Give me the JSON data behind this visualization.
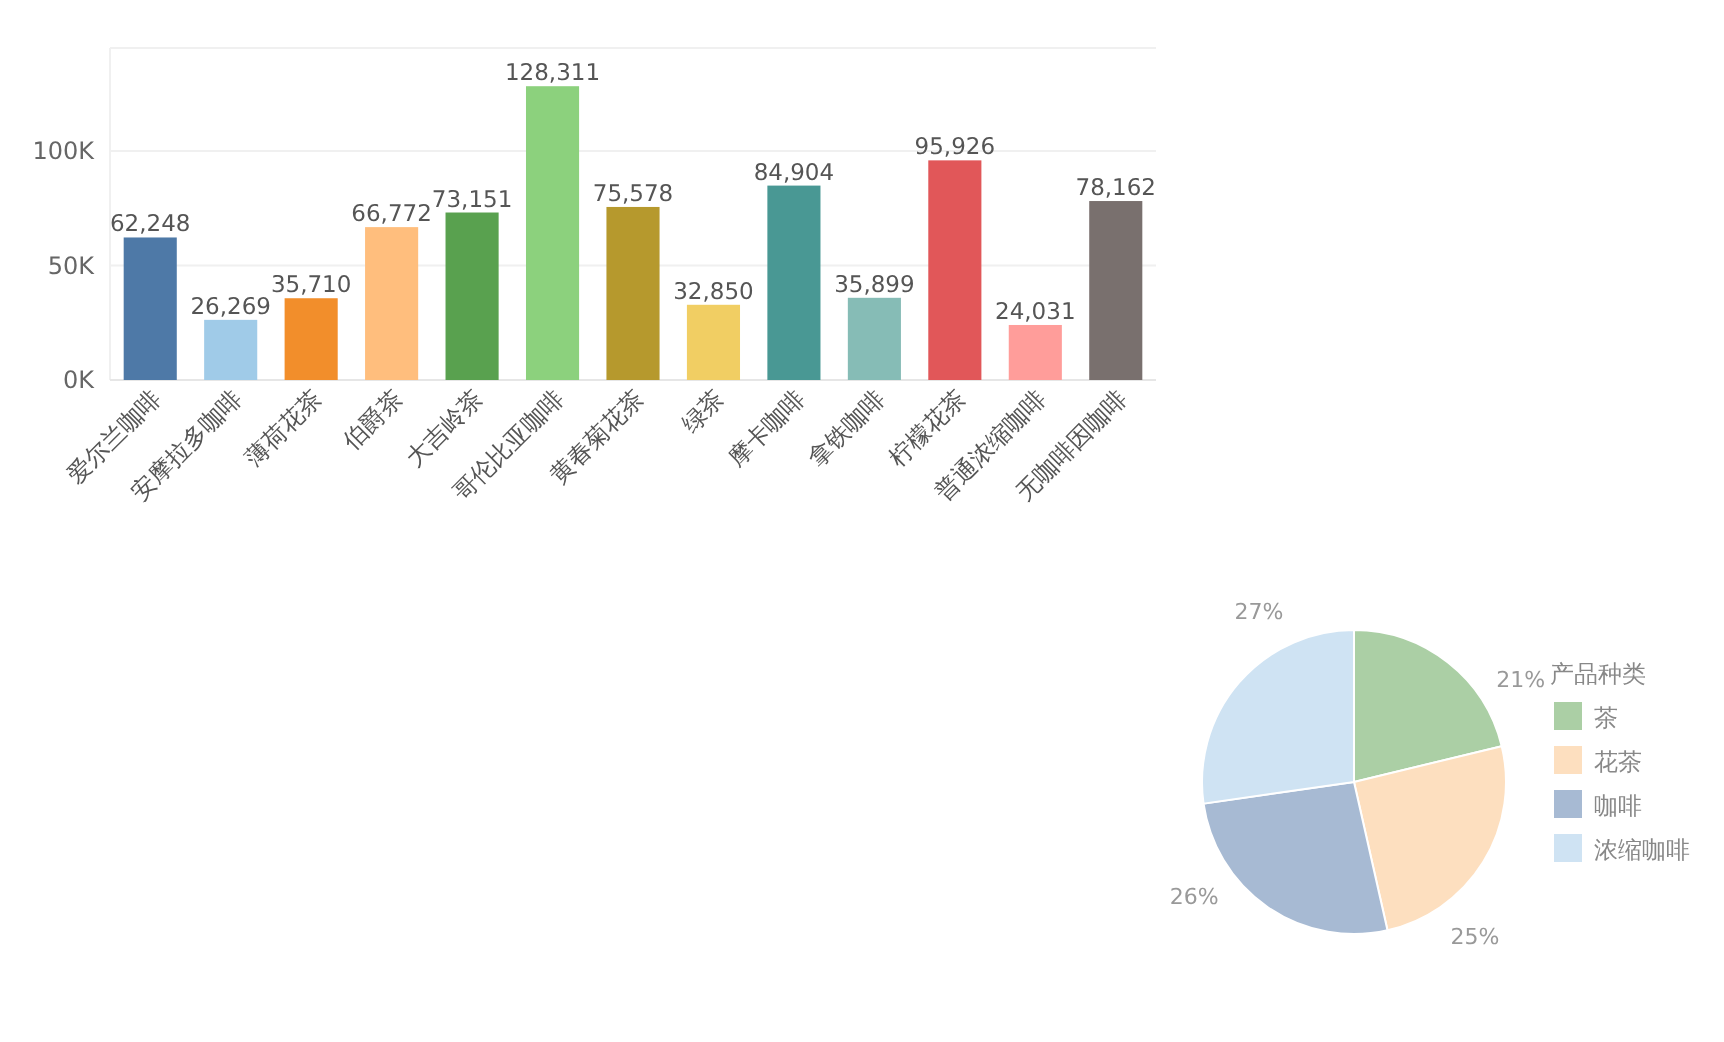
{
  "chart_data": [
    {
      "type": "bar",
      "categories": [
        "爱尔兰咖啡",
        "安摩拉多咖啡",
        "薄荷花茶",
        "伯爵茶",
        "大吉岭茶",
        "哥伦比亚咖啡",
        "黄春菊花茶",
        "绿茶",
        "摩卡咖啡",
        "拿铁咖啡",
        "柠檬花茶",
        "普通浓缩咖啡",
        "无咖啡因咖啡"
      ],
      "values": [
        62248,
        26269,
        35710,
        66772,
        73151,
        128311,
        75578,
        32850,
        84904,
        35899,
        95926,
        24031,
        78162
      ],
      "colors": [
        "#4e79a7",
        "#a0cbe8",
        "#f28e2b",
        "#ffbe7d",
        "#59a14f",
        "#8cd17d",
        "#b6992d",
        "#f1ce63",
        "#499894",
        "#86bcb6",
        "#e15759",
        "#ff9d9a",
        "#79706e"
      ],
      "value_labels": [
        "62,248",
        "26,269",
        "35,710",
        "66,772",
        "73,151",
        "128,311",
        "75,578",
        "32,850",
        "84,904",
        "35,899",
        "95,926",
        "24,031",
        "78,162"
      ],
      "ylim": [
        0,
        145000
      ],
      "yticks": [
        {
          "value": 0,
          "label": "0K"
        },
        {
          "value": 50000,
          "label": "50K"
        },
        {
          "value": 100000,
          "label": "100K"
        }
      ],
      "grid": "y"
    },
    {
      "type": "pie",
      "legend_title": "产品种类",
      "categories": [
        "茶",
        "花茶",
        "咖啡",
        "浓缩咖啡"
      ],
      "values": [
        21,
        25,
        26,
        27
      ],
      "colors": [
        "#abcfa5",
        "#fddfbf",
        "#a7bad3",
        "#cfe3f3"
      ],
      "value_labels": [
        "21%",
        "25%",
        "26%",
        "27%"
      ],
      "legend": "right"
    }
  ]
}
